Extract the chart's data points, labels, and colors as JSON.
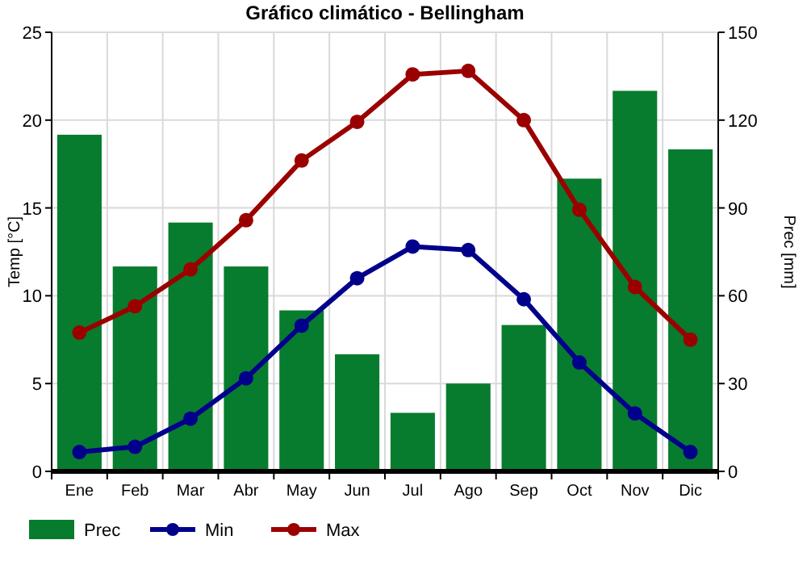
{
  "chart_data": {
    "type": "bar",
    "title": "Gráfico climático - Bellingham",
    "ylabel": "Temp [°C]",
    "y2label": "Prec [mm]",
    "categories": [
      "Ene",
      "Feb",
      "Mar",
      "Abr",
      "May",
      "Jun",
      "Jul",
      "Ago",
      "Sep",
      "Oct",
      "Nov",
      "Dic"
    ],
    "series": [
      {
        "name": "Prec",
        "axis": "y2",
        "color": "#077c2e",
        "values": [
          115,
          70,
          85,
          70,
          55,
          40,
          20,
          30,
          50,
          100,
          130,
          110
        ]
      },
      {
        "name": "Min",
        "type": "line",
        "color": "#00008b",
        "values": [
          1.1,
          1.4,
          3.0,
          5.3,
          8.3,
          11.0,
          12.8,
          12.6,
          9.8,
          6.2,
          3.3,
          1.1
        ]
      },
      {
        "name": "Max",
        "type": "line",
        "color": "#9b0000",
        "values": [
          7.9,
          9.4,
          11.5,
          14.3,
          17.7,
          19.9,
          22.6,
          22.8,
          20.0,
          14.9,
          10.5,
          7.5
        ]
      }
    ],
    "ylim": [
      0,
      25
    ],
    "yticks": [
      0,
      5,
      10,
      15,
      20,
      25
    ],
    "y2lim": [
      0,
      150
    ],
    "y2ticks": [
      0,
      30,
      60,
      90,
      120,
      150
    ],
    "grid": true,
    "legend": "bottom left",
    "marker": "circle",
    "line_style": "solid"
  }
}
